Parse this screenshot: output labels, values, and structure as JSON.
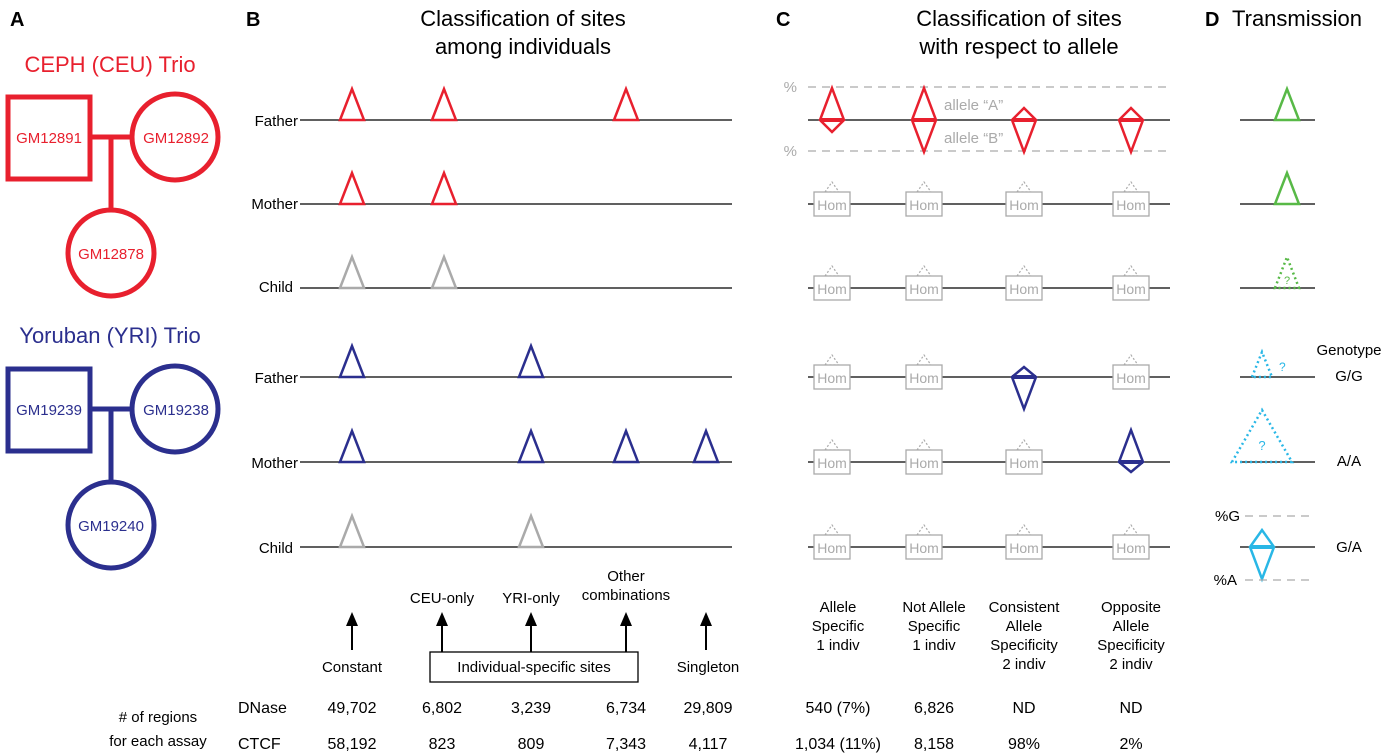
{
  "panels": {
    "a": {
      "letter": "A"
    },
    "b": {
      "letter": "B",
      "title_line1": "Classification of sites",
      "title_line2": "among individuals"
    },
    "c": {
      "letter": "C",
      "title_line1": "Classification of sites",
      "title_line2": "with respect to allele"
    },
    "d": {
      "letter": "D",
      "title": "Transmission"
    }
  },
  "ceu": {
    "name": "CEPH (CEU) Trio",
    "father_id": "GM12891",
    "mother_id": "GM12892",
    "child_id": "GM12878",
    "color": "#e8202e"
  },
  "yri": {
    "name": "Yoruban (YRI) Trio",
    "father_id": "GM19239",
    "mother_id": "GM19238",
    "child_id": "GM19240",
    "color": "#2b2f8e"
  },
  "rows": {
    "father": "Father",
    "mother": "Mother",
    "child": "Child"
  },
  "categories": {
    "constant": "Constant",
    "ceu_only": "CEU-only",
    "yri_only": "YRI-only",
    "other_line1": "Other",
    "other_line2": "combinations",
    "singleton": "Singleton",
    "individual_specific": "Individual-specific sites"
  },
  "allele": {
    "pct_top": "%",
    "pct_bottom": "%",
    "allele_a": "allele “A”",
    "allele_b": "allele “B”",
    "hom": "Hom",
    "col1": [
      "Allele",
      "Specific",
      "1 indiv"
    ],
    "col2": [
      "Not Allele",
      "Specific",
      "1 indiv"
    ],
    "col3": [
      "Consistent",
      "Allele",
      "Specificity",
      "2 indiv"
    ],
    "col4": [
      "Opposite",
      "Allele",
      "Specificity",
      "2 indiv"
    ]
  },
  "transmission": {
    "genotype_label": "Genotype",
    "gg": "G/G",
    "aa": "A/A",
    "ga": "G/A",
    "pct_g": "%G",
    "pct_a": "%A",
    "q": "?"
  },
  "counts": {
    "label_line1": "# of regions",
    "label_line2": "for each assay",
    "dnase": {
      "assay": "DNase",
      "constant": "49,702",
      "ceu_only": "6,802",
      "yri_only": "3,239",
      "other": "6,734",
      "singleton": "29,809",
      "allele_specific": "540 (7%)",
      "not_allele_specific": "6,826",
      "consistent": "ND",
      "opposite": "ND"
    },
    "ctcf": {
      "assay": "CTCF",
      "constant": "58,192",
      "ceu_only": "823",
      "yri_only": "809",
      "other": "7,343",
      "singleton": "4,117",
      "allele_specific": "1,034 (11%)",
      "not_allele_specific": "8,158",
      "consistent": "98%",
      "opposite": "2%"
    }
  },
  "colors": {
    "gray": "#aaaaaa",
    "green": "#58b947",
    "cyan": "#29b7e6"
  }
}
